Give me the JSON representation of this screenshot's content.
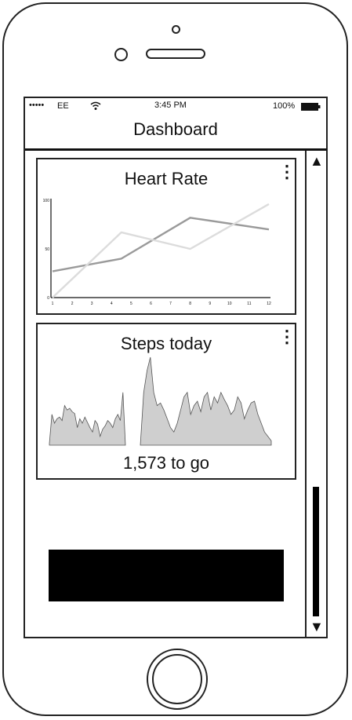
{
  "status_bar": {
    "signal": "•••••",
    "carrier": "EE",
    "time": "3:45 PM",
    "battery": "100%",
    "wifi_icon": "wifi-icon",
    "battery_icon": "battery-icon"
  },
  "nav": {
    "title": "Dashboard"
  },
  "heart_card": {
    "title": "Heart Rate",
    "menu_icon": "more-vertical-icon",
    "chart_data": {
      "type": "line",
      "x": [
        1,
        2,
        3,
        4,
        5,
        6,
        7,
        8,
        9,
        10,
        11,
        12
      ],
      "x_ticks": [
        "1",
        "2",
        "3",
        "4",
        "5",
        "6",
        "7",
        "8",
        "9",
        "10",
        "11",
        "12"
      ],
      "y_ticks": [
        "0",
        "50",
        "100"
      ],
      "ylim": [
        0,
        100
      ],
      "series": [
        {
          "color": "#9a9a9a",
          "points": [
            [
              1,
              27
            ],
            [
              4.5,
              40
            ],
            [
              8,
              82
            ],
            [
              12,
              70
            ]
          ]
        },
        {
          "color": "#dcdcdc",
          "points": [
            [
              1,
              0
            ],
            [
              4.5,
              67
            ],
            [
              8,
              50
            ],
            [
              12,
              96
            ]
          ]
        }
      ]
    }
  },
  "steps_card": {
    "title": "Steps today",
    "menu_icon": "more-vertical-icon",
    "remaining": "1,573 to go",
    "chart_data": {
      "type": "area",
      "color": "#cfcfcf",
      "segments": [
        [
          2,
          35,
          25,
          30,
          32,
          28,
          45,
          40,
          42,
          38,
          36,
          20,
          30,
          25,
          32,
          26,
          20,
          15,
          28,
          24,
          10,
          18,
          22,
          28,
          25,
          20,
          30,
          35,
          28,
          60,
          0
        ],
        [
          0,
          60,
          85,
          100,
          60,
          45,
          48,
          40,
          30,
          20,
          15,
          25,
          40,
          55,
          60,
          35,
          45,
          50,
          38,
          55,
          60,
          40,
          55,
          48,
          60,
          52,
          45,
          35,
          40,
          55,
          48,
          30,
          40,
          48,
          50,
          35,
          25,
          15,
          10,
          5
        ]
      ]
    }
  }
}
